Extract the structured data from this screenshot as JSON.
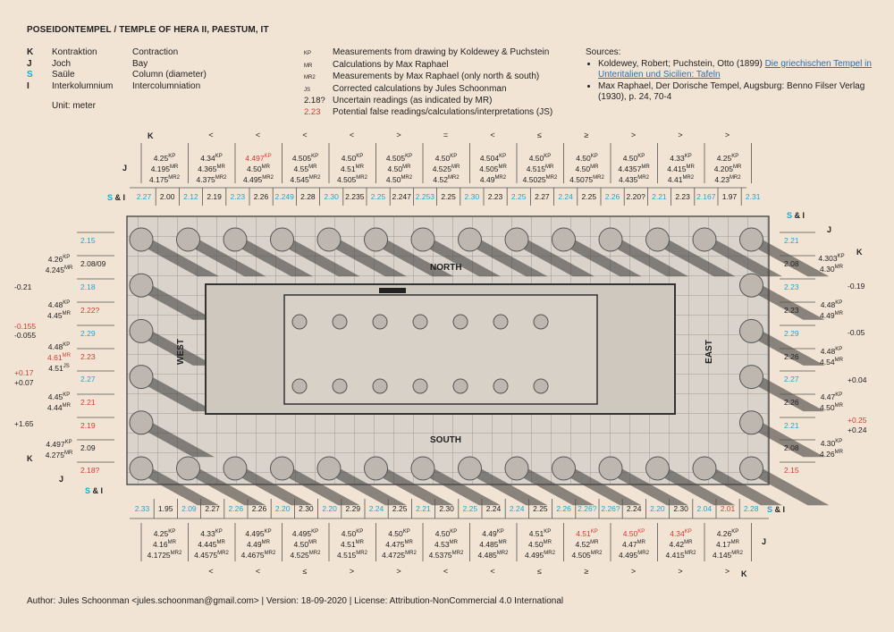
{
  "title": "POSEIDONTEMPEL / TEMPLE OF HERA II, PAESTUM, IT",
  "legend_terms": [
    {
      "key": "K",
      "de": "Kontraktion",
      "en": "Contraction"
    },
    {
      "key": "J",
      "de": "Joch",
      "en": "Bay"
    },
    {
      "key": "S",
      "de": "Saüle",
      "en": "Column (diameter)"
    },
    {
      "key": "I",
      "de": "Interkolumnium",
      "en": "Intercolumniation"
    }
  ],
  "unit": "Unit: meter",
  "legend_sources": [
    {
      "abbr": "KP",
      "text": "Measurements from drawing by Koldewey & Puchstein"
    },
    {
      "abbr": "MR",
      "text": "Calculations by Max Raphael"
    },
    {
      "abbr": "MR2",
      "text": "Measurements by Max Raphael (only north & south)"
    },
    {
      "abbr": "JS",
      "text": "Corrected calculations by Jules Schoonman"
    },
    {
      "abbr": "2.18?",
      "text": "Uncertain readings (as indicated by MR)"
    },
    {
      "abbr": "2.23",
      "text": "Potential false readings/calculations/interpretations (JS)"
    }
  ],
  "sources_title": "Sources:",
  "sources": [
    {
      "pre": "Koldewey, Robert; Puchstein, Otto (1899) ",
      "link": "Die griechischen Tempel in Unteritalien und Sicilien: Tafeln",
      "post": ""
    },
    {
      "pre": "Max Raphael, Der Dorische Tempel, Augsburg: Benno Filser Verlag (1930), p. 24, 70-4",
      "link": "",
      "post": ""
    }
  ],
  "labels": {
    "K": "K",
    "J": "J",
    "SI_S": "S",
    "SI_amp": " & I",
    "north": "NORTH",
    "south": "SOUTH",
    "west": "WEST",
    "east": "EAST"
  },
  "north": {
    "symbols": [
      "<",
      "<",
      "<",
      "<",
      ">",
      "=",
      "<",
      "≤",
      "≥",
      ">",
      ">",
      ">"
    ],
    "bays": [
      [
        "4.25",
        "4.195",
        "4.175"
      ],
      [
        "4.34",
        "4.365",
        "4.375"
      ],
      [
        "4.497",
        "4.50",
        "4.495"
      ],
      [
        "4.505",
        "4.55",
        "4.545"
      ],
      [
        "4.50",
        "4.51",
        "4.505"
      ],
      [
        "4.505",
        "4.50",
        "4.50"
      ],
      [
        "4.50",
        "4.525",
        "4.52"
      ],
      [
        "4.504",
        "4.505",
        "4.49"
      ],
      [
        "4.50",
        "4.515",
        "4.5025"
      ],
      [
        "4.50",
        "4.50",
        "4.5075"
      ],
      [
        "4.50",
        "4.4357",
        "4.435"
      ],
      [
        "4.33",
        "4.415",
        "4.41"
      ],
      [
        "4.25",
        "4.205",
        "4.23"
      ]
    ],
    "si": [
      "2.27",
      "2.00",
      "2.12",
      "2.19",
      "2.23",
      "2.26",
      "2.249",
      "2.28",
      "2.30",
      "2.235",
      "2.25",
      "2.247",
      "2.253",
      "2.25",
      "2.30",
      "2.23",
      "2.25",
      "2.27",
      "2.24",
      "2.25",
      "2.26",
      "2.20?",
      "2.21",
      "2.23",
      "2.167",
      "1.97",
      "2.31"
    ]
  },
  "south": {
    "symbols": [
      "<",
      "<",
      "≤",
      ">",
      ">",
      "<",
      "<",
      "≤",
      "≥",
      ">",
      ">",
      ">"
    ],
    "bays": [
      [
        "4.25",
        "4.16",
        "4.1725"
      ],
      [
        "4.33",
        "4.445",
        "4.4575"
      ],
      [
        "4.495",
        "4.49",
        "4.4675"
      ],
      [
        "4.495",
        "4.50",
        "4.525"
      ],
      [
        "4.50",
        "4.51",
        "4.515"
      ],
      [
        "4.50",
        "4.475",
        "4.4725"
      ],
      [
        "4.50",
        "4.53",
        "4.5375"
      ],
      [
        "4.49",
        "4.485",
        "4.485"
      ],
      [
        "4.51",
        "4.50",
        "4.495"
      ],
      [
        "4.51",
        "4.52",
        "4.505"
      ],
      [
        "4.50",
        "4.47",
        "4.495"
      ],
      [
        "4.34",
        "4.42",
        "4.415"
      ],
      [
        "4.26",
        "4.17",
        "4.145"
      ]
    ],
    "si": [
      "2.33",
      "1.95",
      "2.09",
      "2.27",
      "2.26",
      "2.26",
      "2.20",
      "2.30",
      "2.20",
      "2.29",
      "2.24",
      "2.25",
      "2.21",
      "2.30",
      "2.25",
      "2.24",
      "2.24",
      "2.25",
      "2.26",
      "2.26?",
      "2.26?",
      "2.24",
      "2.20",
      "2.30",
      "2.04",
      "2.01",
      "2.28"
    ]
  },
  "west": {
    "si": [
      "2.15",
      "2.08/09",
      "2.18",
      "2.22?",
      "2.29",
      "2.23",
      "2.27",
      "2.21",
      "2.19",
      "2.09",
      "2.18?"
    ],
    "bays": [
      [
        "4.26",
        "4.245"
      ],
      [
        "4.48",
        "4.45"
      ],
      [
        "4.48",
        "4.61",
        "4.51"
      ],
      [
        "4.45",
        "4.44"
      ],
      [
        "4.497",
        "4.275"
      ]
    ],
    "k": [
      "-0.21",
      "-0.155",
      "-0.055",
      "+0.17",
      "+0.07",
      "+1.65"
    ]
  },
  "east": {
    "si": [
      "2.21",
      "2.08",
      "2.23",
      "2.23",
      "2.29",
      "2.26",
      "2.27",
      "2.26",
      "2.21",
      "2.08",
      "2.15"
    ],
    "bays": [
      [
        "4.303",
        "4.30"
      ],
      [
        "4.48",
        "4.49"
      ],
      [
        "4.48",
        "4.54"
      ],
      [
        "4.47",
        "4.50"
      ],
      [
        "4.30",
        "4.26"
      ]
    ],
    "k": [
      "-0.19",
      "-0.05",
      "+0.04",
      "+0.25",
      "+0.24"
    ]
  },
  "footer": "Author: Jules Schoonman <jules.schoonman@gmail.com> | Version: 18-09-2020 | License: Attribution-NonCommercial 4.0 International",
  "colors": {
    "background": "#f2e4d4",
    "cyan": "#1aa7d6",
    "red": "#d63a33",
    "stone": "#8a8580",
    "shadow": "#4a4846"
  }
}
